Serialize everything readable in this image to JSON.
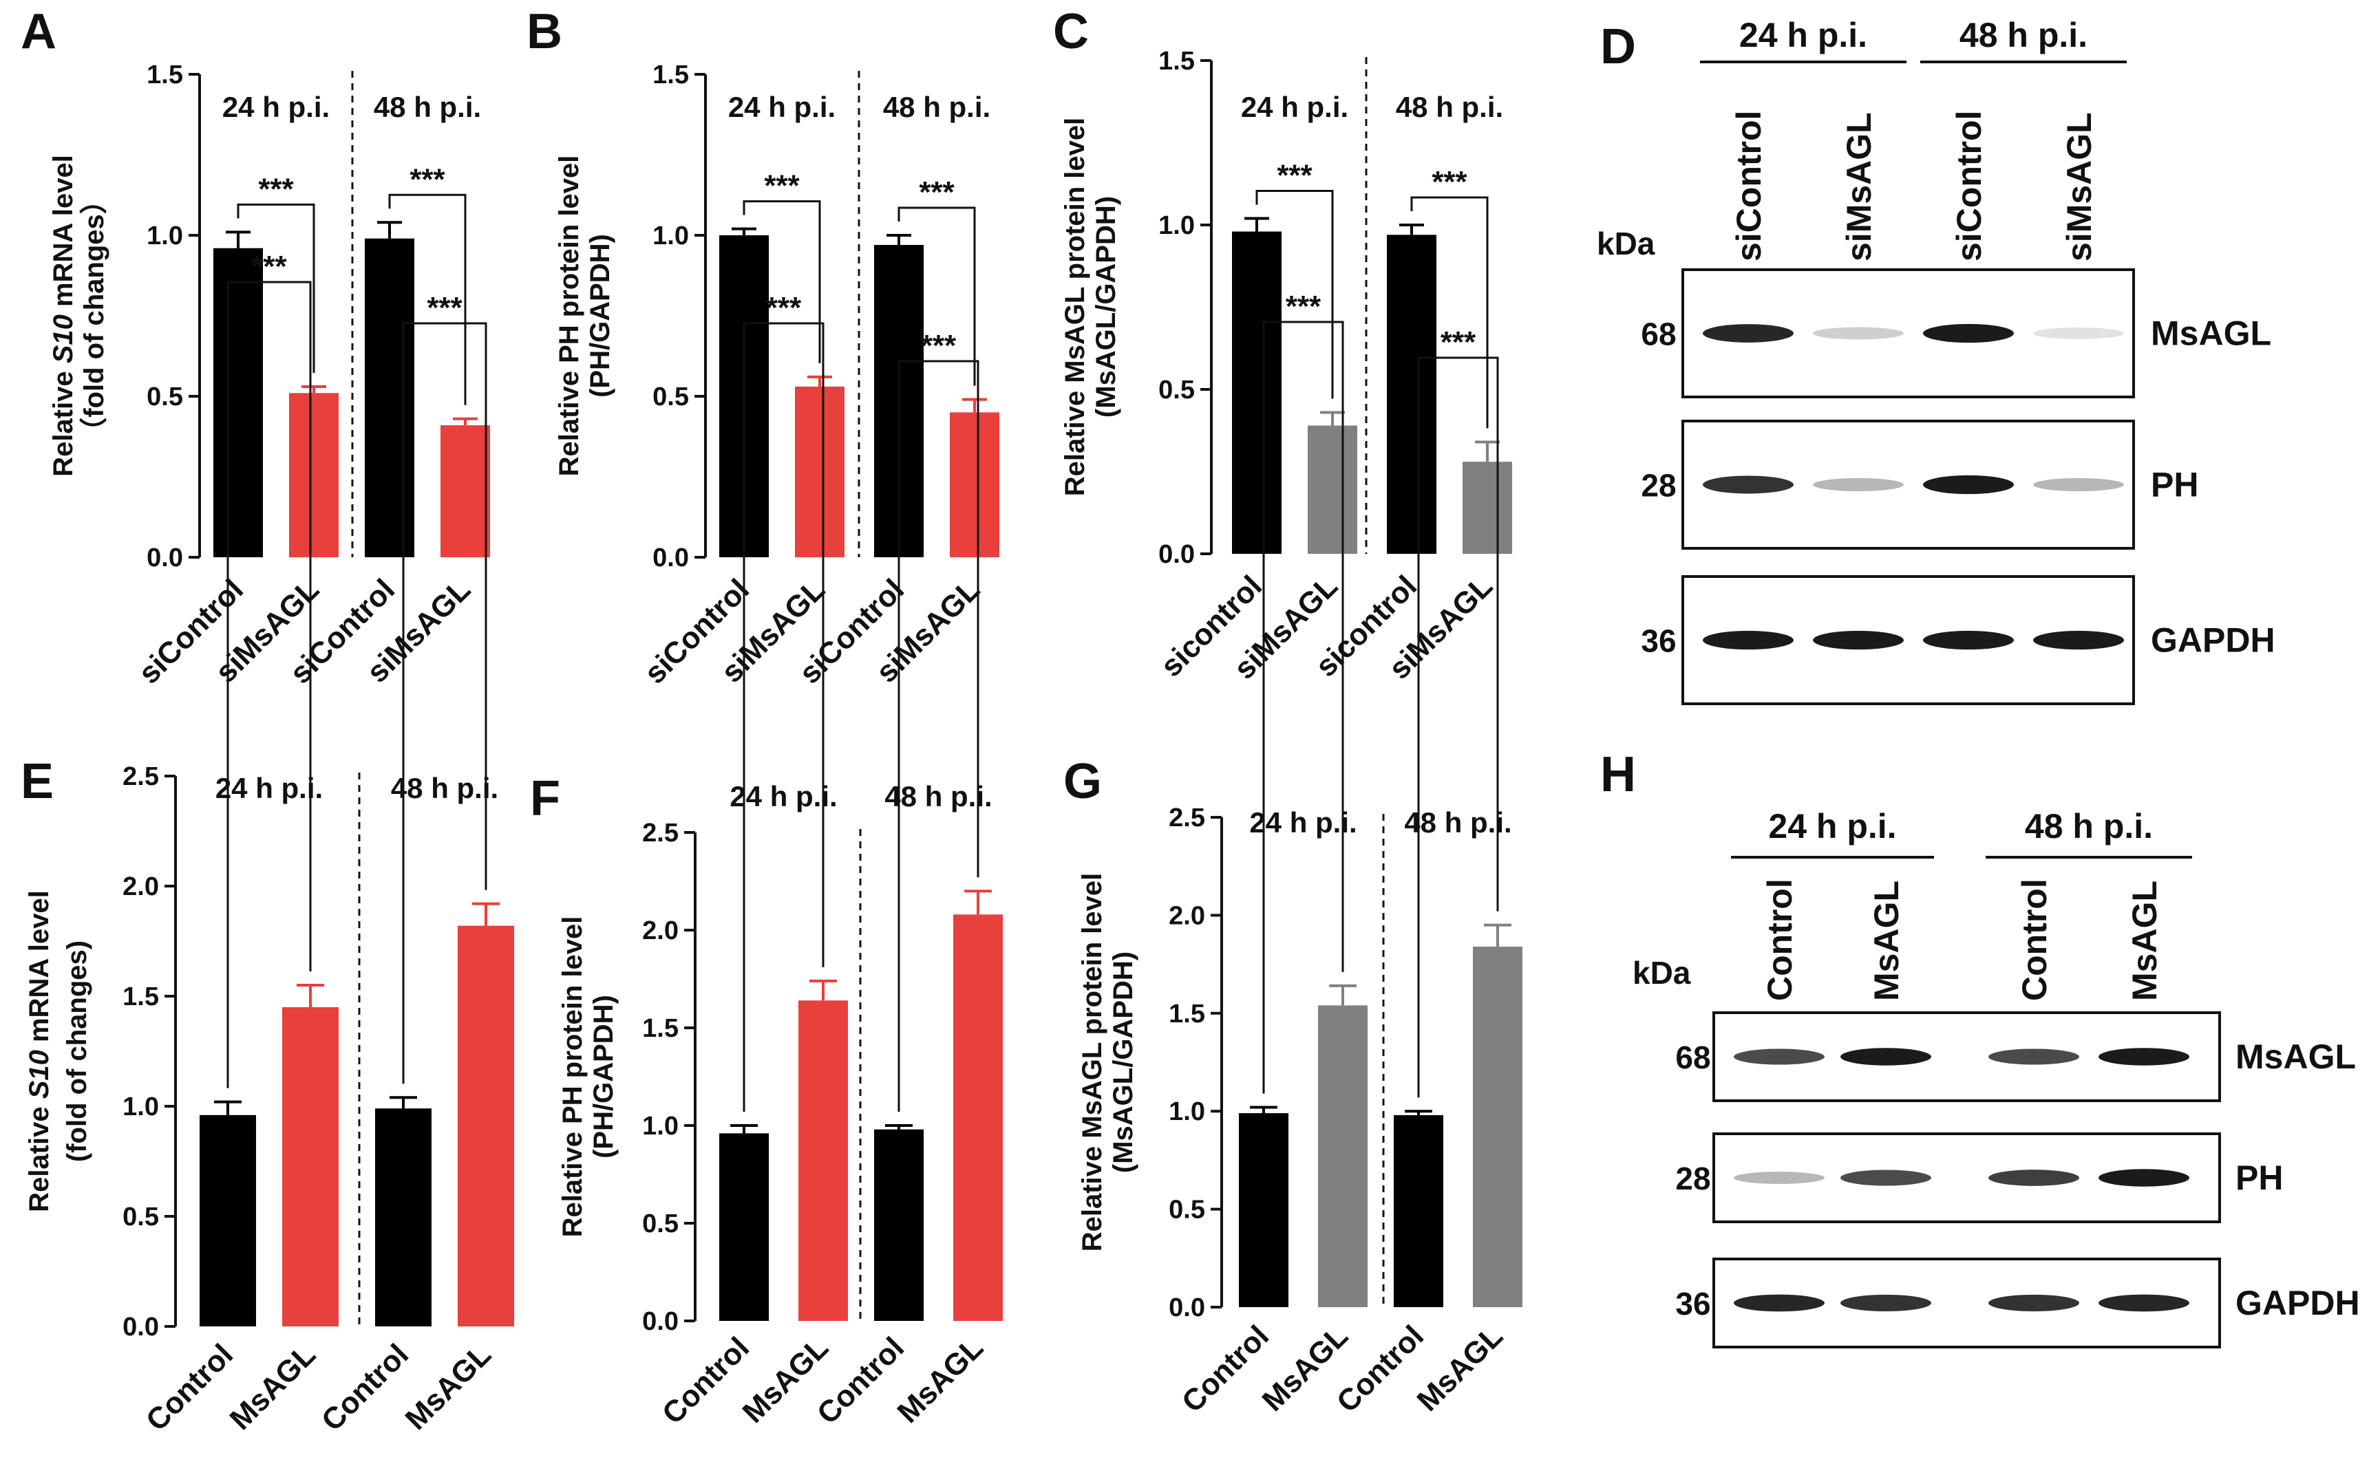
{
  "colors": {
    "control": "#000000",
    "treat_red": "#e8403c",
    "treat_grey": "#808080"
  },
  "chart_data": [
    {
      "panel": "A",
      "type": "bar",
      "ylabel_1": "Relative ",
      "ylabel_1_italic": "S10",
      "ylabel_1_rest": " mRNA level",
      "ylabel_2": "（fold of changes）",
      "ylim": [
        0,
        1.5
      ],
      "yticks": [
        "0.0",
        "0.5",
        "1.0",
        "1.5"
      ],
      "groups": [
        {
          "time": "24 h p.i.",
          "sig": "***",
          "bars": [
            {
              "label": "siControl",
              "value": 0.96,
              "err": 0.05,
              "color": "control"
            },
            {
              "label": "siMsAGL",
              "value": 0.51,
              "err": 0.02,
              "color": "treat_red"
            }
          ]
        },
        {
          "time": "48 h p.i.",
          "sig": "***",
          "bars": [
            {
              "label": "siControl",
              "value": 0.99,
              "err": 0.05,
              "color": "control"
            },
            {
              "label": "siMsAGL",
              "value": 0.41,
              "err": 0.02,
              "color": "treat_red"
            }
          ]
        }
      ]
    },
    {
      "panel": "B",
      "type": "bar",
      "ylabel_1": "Relative PH protein level",
      "ylabel_1_italic": "",
      "ylabel_1_rest": "",
      "ylabel_2": "(PH/GAPDH)",
      "ylim": [
        0,
        1.5
      ],
      "yticks": [
        "0.0",
        "0.5",
        "1.0",
        "1.5"
      ],
      "groups": [
        {
          "time": "24 h p.i.",
          "sig": "***",
          "bars": [
            {
              "label": "siControl",
              "value": 1.0,
              "err": 0.02,
              "color": "control"
            },
            {
              "label": "siMsAGL",
              "value": 0.53,
              "err": 0.03,
              "color": "treat_red"
            }
          ]
        },
        {
          "time": "48 h p.i.",
          "sig": "***",
          "bars": [
            {
              "label": "siControl",
              "value": 0.97,
              "err": 0.03,
              "color": "control"
            },
            {
              "label": "siMsAGL",
              "value": 0.45,
              "err": 0.04,
              "color": "treat_red"
            }
          ]
        }
      ]
    },
    {
      "panel": "C",
      "type": "bar",
      "ylabel_1": "Relative MsAGL protein level",
      "ylabel_1_italic": "",
      "ylabel_1_rest": "",
      "ylabel_2": "(MsAGL/GAPDH)",
      "ylim": [
        0,
        1.5
      ],
      "yticks": [
        "0.0",
        "0.5",
        "1.0",
        "1.5"
      ],
      "groups": [
        {
          "time": "24 h p.i.",
          "sig": "***",
          "bars": [
            {
              "label": "sicontrol",
              "value": 0.98,
              "err": 0.04,
              "color": "control"
            },
            {
              "label": "siMsAGL",
              "value": 0.39,
              "err": 0.04,
              "color": "treat_grey"
            }
          ]
        },
        {
          "time": "48 h p.i.",
          "sig": "***",
          "bars": [
            {
              "label": "sicontrol",
              "value": 0.97,
              "err": 0.03,
              "color": "control"
            },
            {
              "label": "siMsAGL",
              "value": 0.28,
              "err": 0.06,
              "color": "treat_grey"
            }
          ]
        }
      ]
    },
    {
      "panel": "E",
      "type": "bar",
      "ylabel_1": "Relative ",
      "ylabel_1_italic": "S10",
      "ylabel_1_rest": " mRNA level",
      "ylabel_2": "(fold of changes)",
      "ylim": [
        0,
        2.5
      ],
      "yticks": [
        "0.0",
        "0.5",
        "1.0",
        "1.5",
        "2.0",
        "2.5"
      ],
      "groups": [
        {
          "time": "24 h p.i.",
          "sig": "***",
          "bars": [
            {
              "label": "Control",
              "value": 0.96,
              "err": 0.06,
              "color": "control"
            },
            {
              "label": "MsAGL",
              "value": 1.45,
              "err": 0.1,
              "color": "treat_red"
            }
          ]
        },
        {
          "time": "48 h p.i.",
          "sig": "***",
          "bars": [
            {
              "label": "Control",
              "value": 0.99,
              "err": 0.05,
              "color": "control"
            },
            {
              "label": "MsAGL",
              "value": 1.82,
              "err": 0.1,
              "color": "treat_red"
            }
          ]
        }
      ]
    },
    {
      "panel": "F",
      "type": "bar",
      "ylabel_1": "Relative PH protein level",
      "ylabel_1_italic": "",
      "ylabel_1_rest": "",
      "ylabel_2": "(PH/GAPDH)",
      "ylim": [
        0,
        2.5
      ],
      "yticks": [
        "0.0",
        "0.5",
        "1.0",
        "1.5",
        "2.0",
        "2.5"
      ],
      "groups": [
        {
          "time": "24 h p.i.",
          "sig": "***",
          "bars": [
            {
              "label": "Control",
              "value": 0.96,
              "err": 0.04,
              "color": "control"
            },
            {
              "label": "MsAGL",
              "value": 1.64,
              "err": 0.1,
              "color": "treat_red"
            }
          ]
        },
        {
          "time": "48 h p.i.",
          "sig": "***",
          "bars": [
            {
              "label": "Control",
              "value": 0.98,
              "err": 0.02,
              "color": "control"
            },
            {
              "label": "MsAGL",
              "value": 2.08,
              "err": 0.12,
              "color": "treat_red"
            }
          ]
        }
      ]
    },
    {
      "panel": "G",
      "type": "bar",
      "ylabel_1": "Relative MsAGL protein level",
      "ylabel_1_italic": "",
      "ylabel_1_rest": "",
      "ylabel_2": "(MsAGL/GAPDH)",
      "ylim": [
        0,
        2.5
      ],
      "yticks": [
        "0.0",
        "0.5",
        "1.0",
        "1.5",
        "2.0",
        "2.5"
      ],
      "groups": [
        {
          "time": "24 h p.i.",
          "sig": "***",
          "bars": [
            {
              "label": "Control",
              "value": 0.99,
              "err": 0.03,
              "color": "control"
            },
            {
              "label": "MsAGL",
              "value": 1.54,
              "err": 0.1,
              "color": "treat_grey"
            }
          ]
        },
        {
          "time": "48 h p.i.",
          "sig": "***",
          "bars": [
            {
              "label": "Control",
              "value": 0.98,
              "err": 0.02,
              "color": "control"
            },
            {
              "label": "MsAGL",
              "value": 1.84,
              "err": 0.11,
              "color": "treat_grey"
            }
          ]
        }
      ]
    }
  ],
  "blots": [
    {
      "panel": "D",
      "kda_label": "kDa",
      "times": [
        "24 h p.i.",
        "48 h p.i."
      ],
      "lanes": [
        "siControl",
        "siMsAGL",
        "siControl",
        "siMsAGL"
      ],
      "rows": [
        {
          "kda": "68",
          "protein": "MsAGL",
          "intensity": [
            0.9,
            0.2,
            0.95,
            0.12
          ]
        },
        {
          "kda": "28",
          "protein": "PH",
          "intensity": [
            0.85,
            0.3,
            0.95,
            0.3
          ]
        },
        {
          "kda": "36",
          "protein": "GAPDH",
          "intensity": [
            0.95,
            0.95,
            0.95,
            0.95
          ]
        }
      ]
    },
    {
      "panel": "H",
      "kda_label": "kDa",
      "times": [
        "24 h p.i.",
        "48 h p.i."
      ],
      "lanes": [
        "Control",
        "MsAGL",
        "Control",
        "MsAGL"
      ],
      "rows": [
        {
          "kda": "68",
          "protein": "MsAGL",
          "intensity": [
            0.75,
            0.95,
            0.75,
            0.95
          ]
        },
        {
          "kda": "28",
          "protein": "PH",
          "intensity": [
            0.3,
            0.75,
            0.8,
            0.95
          ]
        },
        {
          "kda": "36",
          "protein": "GAPDH",
          "intensity": [
            0.9,
            0.85,
            0.85,
            0.9
          ]
        }
      ]
    }
  ]
}
